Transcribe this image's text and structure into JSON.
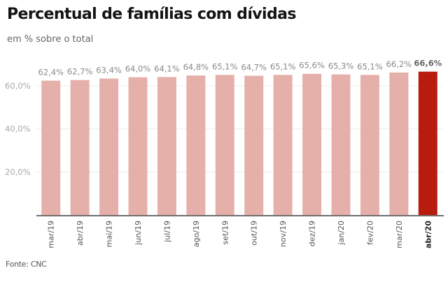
{
  "chart_data": {
    "type": "bar",
    "title": "Percentual de famílias com dívidas",
    "subtitle": "em % sobre o total",
    "source": "Fonte: CNC",
    "xlabel": "",
    "ylabel": "",
    "ylim": [
      0,
      70
    ],
    "yticks": [
      20,
      40,
      60
    ],
    "ytick_labels": [
      "20,0%",
      "40,0%",
      "60,0%"
    ],
    "grid": true,
    "categories": [
      "mar/19",
      "abr/19",
      "mai/19",
      "jun/19",
      "jul/19",
      "ago/19",
      "set/19",
      "out/19",
      "nov/19",
      "dez/19",
      "jan/20",
      "fev/20",
      "mar/20",
      "abr/20"
    ],
    "values": [
      62.4,
      62.7,
      63.4,
      64.0,
      64.1,
      64.8,
      65.1,
      64.7,
      65.1,
      65.6,
      65.3,
      65.1,
      66.2,
      66.6
    ],
    "value_labels": [
      "62,4%",
      "62,7%",
      "63,4%",
      "64,0%",
      "64,1%",
      "64,8%",
      "65,1%",
      "64,7%",
      "65,1%",
      "65,6%",
      "65,3%",
      "65,1%",
      "66,2%",
      "66,6%"
    ],
    "highlight_index": 13,
    "colors": {
      "bar": "#e5b0aa",
      "highlight": "#b81c0e",
      "grid": "#ececec",
      "axis": "#6e6e6e"
    }
  }
}
